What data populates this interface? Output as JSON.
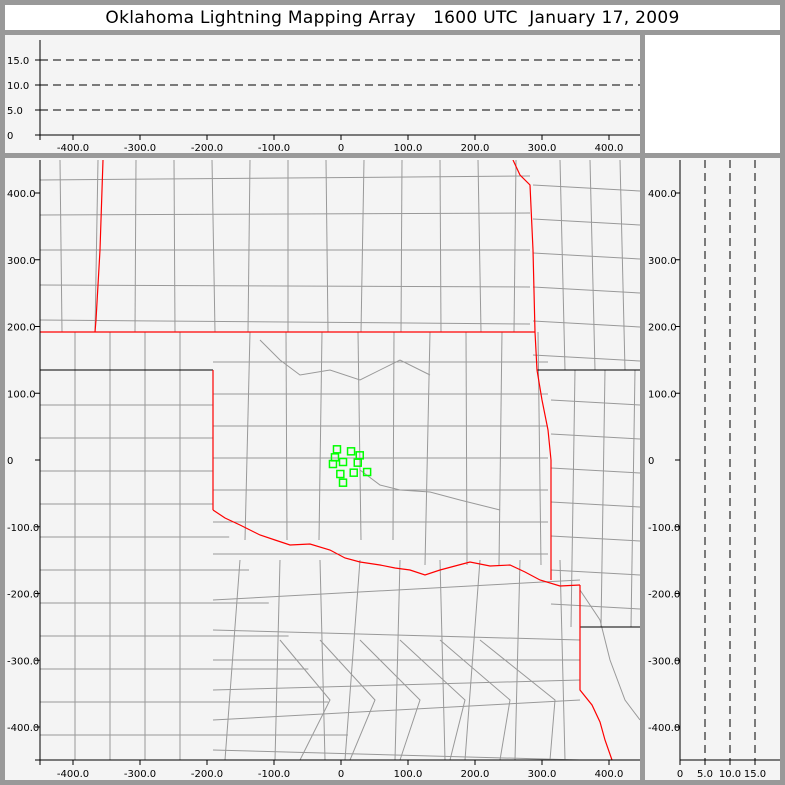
{
  "title": "Oklahoma Lightning Mapping Array   1600 UTC  January 17, 2009",
  "colors": {
    "state_border": "#ff0000",
    "county_line": "#999999",
    "station": "#00ff00",
    "panel_bg": "#f4f4f4",
    "frame": "#999999"
  },
  "top_panel": {
    "x_ticks": [
      "-400.0",
      "-300.0",
      "-200.0",
      "-100.0",
      "0",
      "100.0",
      "200.0",
      "300.0",
      "400.0"
    ],
    "x_values": [
      -400,
      -300,
      -200,
      -100,
      0,
      100,
      200,
      300,
      400
    ],
    "alt_ticks": [
      "0",
      "5.0",
      "10.0",
      "15.0"
    ],
    "alt_values": [
      0,
      5,
      10,
      15
    ],
    "dashed_levels_km": [
      5,
      10,
      15
    ]
  },
  "map_panel": {
    "x_ticks": [
      "-400.0",
      "-300.0",
      "-200.0",
      "-100.0",
      "0",
      "100.0",
      "200.0",
      "300.0",
      "400.0"
    ],
    "x_values": [
      -400,
      -300,
      -200,
      -100,
      0,
      100,
      200,
      300,
      400
    ],
    "y_ticks": [
      "400.0",
      "300.0",
      "200.0",
      "100.0",
      "0",
      "-100.0",
      "-200.0",
      "-300.0",
      "-400.0"
    ],
    "y_values": [
      400,
      300,
      200,
      100,
      0,
      -100,
      -200,
      -300,
      -400
    ],
    "range_km": [
      -450,
      450
    ],
    "stations_km": [
      [
        -6,
        16
      ],
      [
        -9,
        4
      ],
      [
        15,
        13
      ],
      [
        28,
        7
      ],
      [
        -12,
        -6
      ],
      [
        3,
        -3
      ],
      [
        25,
        -4
      ],
      [
        -1,
        -21
      ],
      [
        19,
        -19
      ],
      [
        39,
        -18
      ],
      [
        3,
        -34
      ]
    ]
  },
  "right_panel": {
    "alt_ticks": [
      "0",
      "5.0",
      "10.0",
      "15.0"
    ],
    "alt_values": [
      0,
      5,
      10,
      15
    ],
    "y_ticks": [
      "400.0",
      "300.0",
      "200.0",
      "100.0",
      "0",
      "-100.0",
      "-200.0",
      "-300.0",
      "-400.0"
    ],
    "y_values": [
      400,
      300,
      200,
      100,
      0,
      -100,
      -200,
      -300,
      -400
    ],
    "dashed_levels_km": [
      5,
      10,
      15
    ]
  }
}
